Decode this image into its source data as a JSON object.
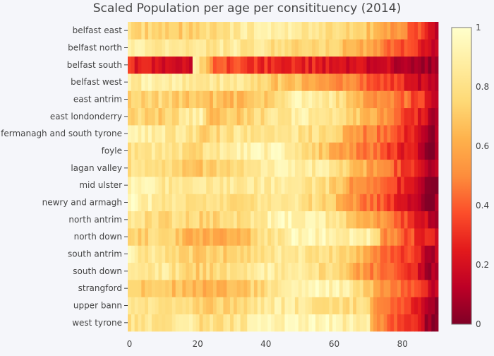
{
  "chart_data": {
    "type": "heatmap",
    "title": "Scaled Population per age per consitituency (2014)",
    "xlabel": "",
    "ylabel": "",
    "x_range": [
      0,
      90
    ],
    "x_ticks": [
      0,
      20,
      40,
      60,
      80
    ],
    "colorscale": "YlOrRd (reversed)",
    "colorbar": {
      "range": [
        0,
        1
      ],
      "ticks": [
        0,
        0.2,
        0.4,
        0.6,
        0.8,
        1
      ],
      "tick_labels": [
        "0",
        "0.2",
        "0.4",
        "0.6",
        "0.8",
        "1"
      ],
      "colors": [
        "#800026",
        "#bd0026",
        "#e31a1c",
        "#fc4e2a",
        "#fd8d3c",
        "#feb24c",
        "#fed976",
        "#ffeda0",
        "#ffffcc"
      ]
    },
    "rows": [
      {
        "label": "west tyrone",
        "anchors": [
          [
            0,
            0.82
          ],
          [
            10,
            0.83
          ],
          [
            19,
            0.88
          ],
          [
            20,
            0.78
          ],
          [
            30,
            0.82
          ],
          [
            42,
            0.93
          ],
          [
            55,
            0.95
          ],
          [
            70,
            0.85
          ],
          [
            72,
            0.52
          ],
          [
            80,
            0.35
          ],
          [
            85,
            0.2
          ],
          [
            88,
            0.05
          ],
          [
            91,
            0.05
          ]
        ]
      },
      {
        "label": "upper bann",
        "anchors": [
          [
            0,
            0.88
          ],
          [
            8,
            0.78
          ],
          [
            19,
            0.8
          ],
          [
            20,
            0.72
          ],
          [
            32,
            0.78
          ],
          [
            42,
            0.88
          ],
          [
            55,
            0.82
          ],
          [
            70,
            0.78
          ],
          [
            72,
            0.5
          ],
          [
            80,
            0.4
          ],
          [
            85,
            0.25
          ],
          [
            88,
            0.08
          ],
          [
            91,
            0.08
          ]
        ]
      },
      {
        "label": "strangford",
        "anchors": [
          [
            0,
            0.7
          ],
          [
            10,
            0.72
          ],
          [
            20,
            0.6
          ],
          [
            30,
            0.65
          ],
          [
            42,
            0.82
          ],
          [
            55,
            0.93
          ],
          [
            65,
            0.88
          ],
          [
            72,
            0.62
          ],
          [
            80,
            0.42
          ],
          [
            86,
            0.28
          ],
          [
            89,
            0.15
          ],
          [
            91,
            0.15
          ]
        ]
      },
      {
        "label": "south down",
        "anchors": [
          [
            0,
            0.82
          ],
          [
            10,
            0.85
          ],
          [
            20,
            0.72
          ],
          [
            32,
            0.82
          ],
          [
            42,
            0.88
          ],
          [
            52,
            0.82
          ],
          [
            62,
            0.75
          ],
          [
            68,
            0.55
          ],
          [
            76,
            0.4
          ],
          [
            84,
            0.25
          ],
          [
            88,
            0.1
          ],
          [
            91,
            0.1
          ]
        ]
      },
      {
        "label": "south antrim",
        "anchors": [
          [
            0,
            0.9
          ],
          [
            10,
            0.78
          ],
          [
            20,
            0.72
          ],
          [
            30,
            0.72
          ],
          [
            42,
            0.85
          ],
          [
            55,
            0.82
          ],
          [
            68,
            0.68
          ],
          [
            75,
            0.45
          ],
          [
            84,
            0.3
          ],
          [
            88,
            0.12
          ],
          [
            91,
            0.12
          ]
        ]
      },
      {
        "label": "north down",
        "anchors": [
          [
            0,
            0.72
          ],
          [
            10,
            0.75
          ],
          [
            20,
            0.6
          ],
          [
            28,
            0.58
          ],
          [
            35,
            0.7
          ],
          [
            48,
            0.93
          ],
          [
            62,
            0.92
          ],
          [
            72,
            0.86
          ],
          [
            74,
            0.55
          ],
          [
            82,
            0.38
          ],
          [
            88,
            0.22
          ],
          [
            91,
            0.22
          ]
        ]
      },
      {
        "label": "north antrim",
        "anchors": [
          [
            0,
            0.8
          ],
          [
            10,
            0.78
          ],
          [
            20,
            0.74
          ],
          [
            32,
            0.8
          ],
          [
            45,
            0.95
          ],
          [
            56,
            0.9
          ],
          [
            66,
            0.72
          ],
          [
            75,
            0.5
          ],
          [
            82,
            0.32
          ],
          [
            88,
            0.15
          ],
          [
            91,
            0.15
          ]
        ]
      },
      {
        "label": "newry and armagh",
        "anchors": [
          [
            0,
            0.95
          ],
          [
            10,
            0.84
          ],
          [
            20,
            0.8
          ],
          [
            32,
            0.8
          ],
          [
            46,
            0.84
          ],
          [
            58,
            0.74
          ],
          [
            65,
            0.55
          ],
          [
            72,
            0.42
          ],
          [
            82,
            0.22
          ],
          [
            88,
            0.05
          ],
          [
            91,
            0.05
          ]
        ]
      },
      {
        "label": "mid ulster",
        "anchors": [
          [
            0,
            0.92
          ],
          [
            10,
            0.86
          ],
          [
            20,
            0.82
          ],
          [
            32,
            0.85
          ],
          [
            45,
            0.88
          ],
          [
            58,
            0.78
          ],
          [
            65,
            0.56
          ],
          [
            72,
            0.42
          ],
          [
            82,
            0.22
          ],
          [
            88,
            0.05
          ],
          [
            91,
            0.05
          ]
        ]
      },
      {
        "label": "lagan valley",
        "anchors": [
          [
            0,
            0.78
          ],
          [
            10,
            0.8
          ],
          [
            20,
            0.68
          ],
          [
            32,
            0.8
          ],
          [
            45,
            0.92
          ],
          [
            58,
            0.85
          ],
          [
            66,
            0.7
          ],
          [
            74,
            0.48
          ],
          [
            84,
            0.28
          ],
          [
            88,
            0.12
          ],
          [
            91,
            0.12
          ]
        ]
      },
      {
        "label": "foyle",
        "anchors": [
          [
            0,
            0.82
          ],
          [
            10,
            0.86
          ],
          [
            20,
            0.76
          ],
          [
            32,
            0.9
          ],
          [
            46,
            0.92
          ],
          [
            56,
            0.72
          ],
          [
            66,
            0.52
          ],
          [
            76,
            0.36
          ],
          [
            84,
            0.2
          ],
          [
            88,
            0.06
          ],
          [
            91,
            0.06
          ]
        ]
      },
      {
        "label": "fermanagh and south tyrone",
        "anchors": [
          [
            0,
            0.9
          ],
          [
            10,
            0.86
          ],
          [
            19,
            0.82
          ],
          [
            20,
            0.74
          ],
          [
            32,
            0.82
          ],
          [
            45,
            0.86
          ],
          [
            58,
            0.76
          ],
          [
            68,
            0.52
          ],
          [
            76,
            0.4
          ],
          [
            84,
            0.25
          ],
          [
            88,
            0.08
          ],
          [
            91,
            0.08
          ]
        ]
      },
      {
        "label": "east londonderry",
        "anchors": [
          [
            0,
            0.75
          ],
          [
            10,
            0.72
          ],
          [
            21,
            0.9
          ],
          [
            24,
            0.65
          ],
          [
            36,
            0.74
          ],
          [
            50,
            0.9
          ],
          [
            62,
            0.82
          ],
          [
            72,
            0.6
          ],
          [
            80,
            0.4
          ],
          [
            86,
            0.22
          ],
          [
            89,
            0.1
          ],
          [
            91,
            0.1
          ]
        ]
      },
      {
        "label": "east antrim",
        "anchors": [
          [
            0,
            0.7
          ],
          [
            10,
            0.76
          ],
          [
            20,
            0.68
          ],
          [
            30,
            0.66
          ],
          [
            40,
            0.72
          ],
          [
            50,
            0.93
          ],
          [
            60,
            0.82
          ],
          [
            70,
            0.58
          ],
          [
            80,
            0.45
          ],
          [
            86,
            0.3
          ],
          [
            89,
            0.18
          ],
          [
            91,
            0.18
          ]
        ]
      },
      {
        "label": "belfast west",
        "anchors": [
          [
            0,
            0.88
          ],
          [
            10,
            0.9
          ],
          [
            20,
            0.82
          ],
          [
            32,
            0.85
          ],
          [
            38,
            0.72
          ],
          [
            50,
            0.66
          ],
          [
            60,
            0.55
          ],
          [
            68,
            0.44
          ],
          [
            80,
            0.3
          ],
          [
            86,
            0.16
          ],
          [
            89,
            0.08
          ],
          [
            91,
            0.08
          ]
        ]
      },
      {
        "label": "belfast south",
        "anchors": [
          [
            0,
            0.28
          ],
          [
            10,
            0.2
          ],
          [
            18,
            0.22
          ],
          [
            19,
            0.92
          ],
          [
            23,
            0.62
          ],
          [
            25,
            0.4
          ],
          [
            40,
            0.3
          ],
          [
            55,
            0.26
          ],
          [
            70,
            0.18
          ],
          [
            82,
            0.12
          ],
          [
            88,
            0.06
          ],
          [
            91,
            0.06
          ]
        ]
      },
      {
        "label": "belfast north",
        "anchors": [
          [
            0,
            0.92
          ],
          [
            10,
            0.84
          ],
          [
            20,
            0.82
          ],
          [
            30,
            0.86
          ],
          [
            42,
            0.8
          ],
          [
            56,
            0.76
          ],
          [
            66,
            0.66
          ],
          [
            76,
            0.46
          ],
          [
            84,
            0.3
          ],
          [
            88,
            0.14
          ],
          [
            91,
            0.14
          ]
        ]
      },
      {
        "label": "belfast east",
        "anchors": [
          [
            0,
            0.82
          ],
          [
            8,
            0.7
          ],
          [
            20,
            0.74
          ],
          [
            30,
            0.85
          ],
          [
            42,
            0.9
          ],
          [
            55,
            0.82
          ],
          [
            68,
            0.72
          ],
          [
            78,
            0.55
          ],
          [
            86,
            0.34
          ],
          [
            89,
            0.18
          ],
          [
            91,
            0.18
          ]
        ]
      }
    ]
  }
}
